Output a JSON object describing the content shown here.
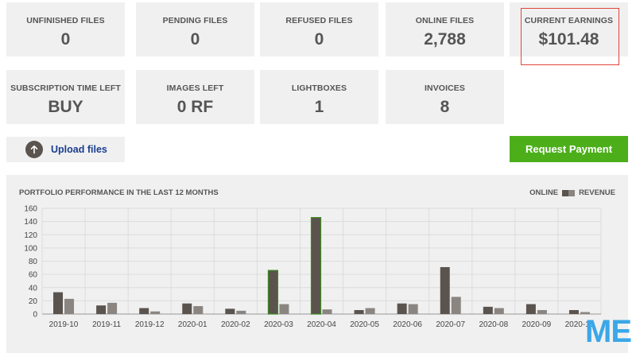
{
  "tiles": [
    {
      "label": "UNFINISHED FILES",
      "value": "0"
    },
    {
      "label": "PENDING FILES",
      "value": "0"
    },
    {
      "label": "REFUSED FILES",
      "value": "0"
    },
    {
      "label": "ONLINE FILES",
      "value": "2,788"
    },
    {
      "label": "CURRENT EARNINGS",
      "value": "$101.48"
    },
    {
      "label": "SUBSCRIPTION TIME LEFT",
      "value": "BUY"
    },
    {
      "label": "IMAGES LEFT",
      "value": "0 RF"
    },
    {
      "label": "LIGHTBOXES",
      "value": "1"
    },
    {
      "label": "INVOICES",
      "value": "8"
    }
  ],
  "actions": {
    "upload_label": "Upload files",
    "request_label": "Request Payment"
  },
  "colors": {
    "online": "#5b534e",
    "revenue": "#8a8580",
    "accent_green": "#4caf1a",
    "highlight_border": "#e0463a",
    "link_blue": "#1a3d8f"
  },
  "chart_data": {
    "type": "bar",
    "title": "PORTFOLIO PERFORMANCE IN THE LAST 12 MONTHS",
    "legend": {
      "online": "ONLINE",
      "revenue": "REVENUE",
      "placement": "top-right"
    },
    "categories": [
      "2019-10",
      "2019-11",
      "2019-12",
      "2020-01",
      "2020-02",
      "2020-03",
      "2020-04",
      "2020-05",
      "2020-06",
      "2020-07",
      "2020-08",
      "2020-09",
      "2020-10"
    ],
    "series": [
      {
        "key": "online",
        "values": [
          33,
          13,
          9,
          16,
          8,
          66,
          146,
          6,
          16,
          71,
          11,
          15,
          6
        ]
      },
      {
        "key": "revenue",
        "values": [
          23,
          17,
          4,
          12,
          5,
          15,
          7,
          9,
          15,
          26,
          9,
          6,
          3
        ]
      }
    ],
    "ylim": [
      0,
      160
    ],
    "yticks": [
      0,
      20,
      40,
      60,
      80,
      100,
      120,
      140,
      160
    ],
    "highlighted_categories": [
      "2020-03",
      "2020-04"
    ],
    "grid": true
  },
  "watermark": "ME"
}
